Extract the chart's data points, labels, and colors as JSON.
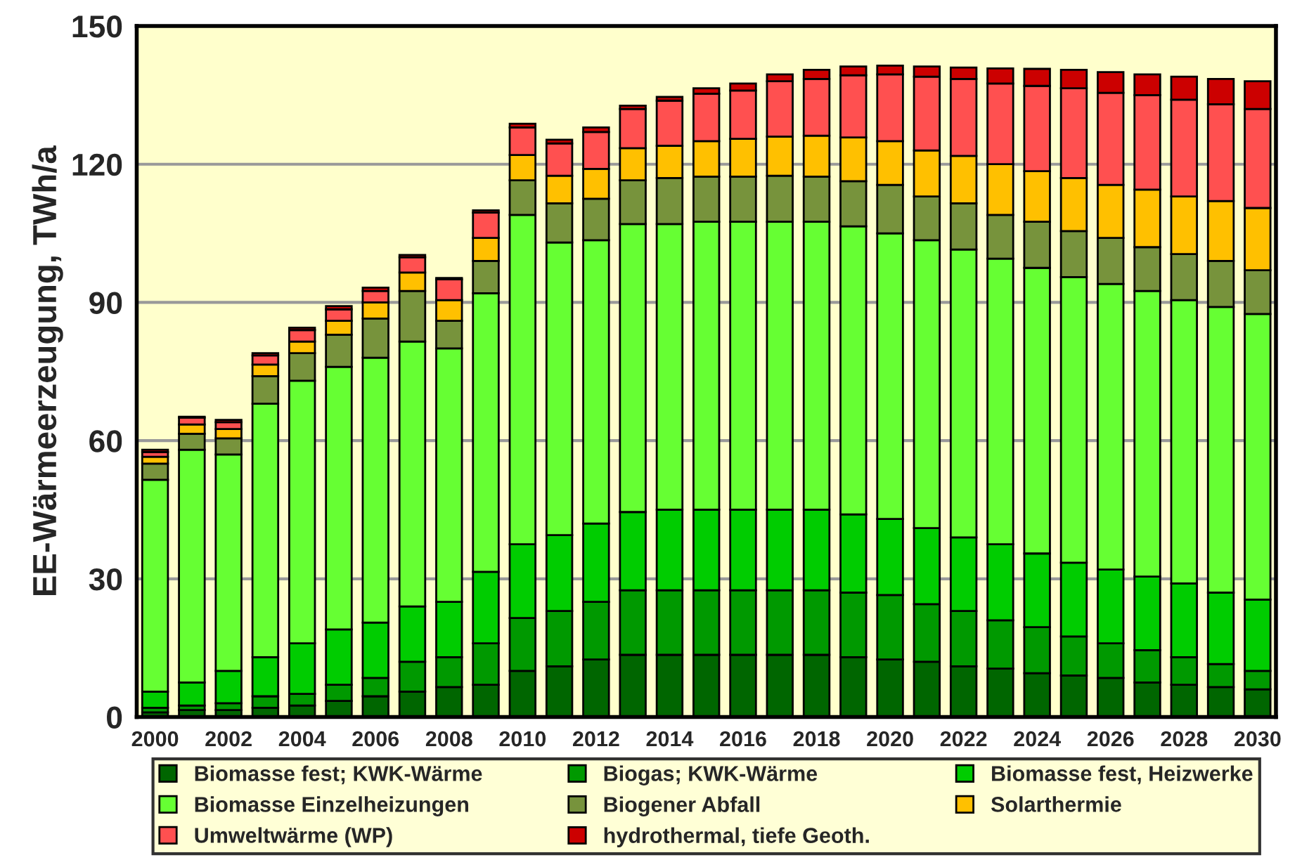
{
  "chart_data": {
    "type": "bar",
    "stacked": true,
    "ylabel": "EE-Wärmeerzeugung, TWh/a",
    "categories": [
      "2000",
      null,
      "2002",
      null,
      "2004",
      null,
      "2006",
      null,
      "2008",
      null,
      "2010",
      null,
      "2012",
      null,
      "2014",
      null,
      "2016",
      null,
      "2018",
      null,
      "2020",
      null,
      "2022",
      null,
      "2024",
      null,
      "2026",
      null,
      "2028",
      null,
      "2030"
    ],
    "series": [
      {
        "name": "Biomasse fest; KWK-Wärme",
        "color": "#006600",
        "values": [
          1,
          1.5,
          1.5,
          2,
          2.5,
          3.5,
          4.5,
          5.5,
          6.5,
          7,
          10,
          11,
          12.5,
          13.5,
          13.5,
          13.5,
          13.5,
          13.5,
          13.5,
          13,
          12.5,
          12,
          11,
          10.5,
          9.5,
          9,
          8.5,
          7.5,
          7,
          6.5,
          6
        ]
      },
      {
        "name": "Biogas; KWK-Wärme",
        "color": "#009900",
        "values": [
          1,
          1,
          1.5,
          2.5,
          2.5,
          3.5,
          4,
          6.5,
          6.5,
          9,
          11.5,
          12,
          12.5,
          14,
          14,
          14,
          14,
          14,
          14,
          14,
          14,
          12.5,
          12,
          10.5,
          10,
          8.5,
          7.5,
          7,
          6,
          5,
          4
        ]
      },
      {
        "name": "Biomasse fest, Heizwerke",
        "color": "#00CC00",
        "values": [
          3.5,
          5,
          7,
          8.5,
          11,
          12,
          12,
          12,
          12,
          15.5,
          16,
          16.5,
          17,
          17,
          17.5,
          17.5,
          17.5,
          17.5,
          17.5,
          17,
          16.5,
          16.5,
          16,
          16.5,
          16,
          16,
          16,
          16,
          16,
          15.5,
          15.5
        ]
      },
      {
        "name": "Biomasse Einzelheizungen",
        "color": "#66FF33",
        "values": [
          46,
          50.5,
          47,
          55,
          57,
          57,
          57.5,
          57.5,
          55,
          60.5,
          71.5,
          63.5,
          61.5,
          62.5,
          62,
          62.5,
          62.5,
          62.5,
          62.5,
          62.5,
          62,
          62.5,
          62.5,
          62,
          62,
          62,
          62,
          62,
          61.5,
          62,
          62
        ]
      },
      {
        "name": "Biogener Abfall",
        "color": "#77933C",
        "values": [
          3.5,
          3.5,
          3.5,
          6,
          6,
          7,
          8.5,
          11,
          6,
          7,
          7.5,
          8.5,
          9,
          9.5,
          10,
          9.8,
          9.8,
          10,
          9.8,
          9.8,
          10.5,
          9.5,
          10,
          9.5,
          10,
          10,
          10,
          9.5,
          10,
          10,
          9.5
        ]
      },
      {
        "name": "Solarthermie",
        "color": "#FFC000",
        "values": [
          1.5,
          2,
          2,
          2.5,
          2.5,
          3,
          3.5,
          4,
          4.5,
          5,
          5.5,
          6,
          6.5,
          7,
          7,
          7.7,
          8.2,
          8.5,
          8.9,
          9.5,
          9.5,
          10,
          10.3,
          11,
          11,
          11.5,
          11.5,
          12.5,
          12.5,
          13,
          13.5
        ]
      },
      {
        "name": "Umweltwärme (WP)",
        "color": "#FF5050",
        "values": [
          1,
          1.5,
          1.5,
          2,
          2.5,
          2.5,
          2.5,
          3.3,
          4.5,
          5.5,
          6,
          7,
          8,
          8.5,
          9.8,
          10.3,
          10.5,
          12,
          12.3,
          13.5,
          14.5,
          16,
          16.7,
          17.5,
          18.5,
          19.5,
          20,
          20.5,
          21,
          21,
          21.5
        ]
      },
      {
        "name": "hydrothermal, tiefe Geoth.",
        "color": "#CC0000",
        "values": [
          0.5,
          0.2,
          0.5,
          0.5,
          0.5,
          0.7,
          0.7,
          0.5,
          0.3,
          0.5,
          0.8,
          0.8,
          1,
          0.7,
          0.8,
          1.2,
          1.5,
          1.5,
          2,
          1.9,
          1.9,
          2.2,
          2.5,
          3.3,
          3.7,
          4,
          4.5,
          4.5,
          5,
          5.5,
          6
        ]
      }
    ],
    "ylim": [
      0,
      150
    ],
    "yticks": [
      0,
      30,
      60,
      90,
      120,
      150
    ],
    "grid": "y",
    "legend": "bottom"
  }
}
